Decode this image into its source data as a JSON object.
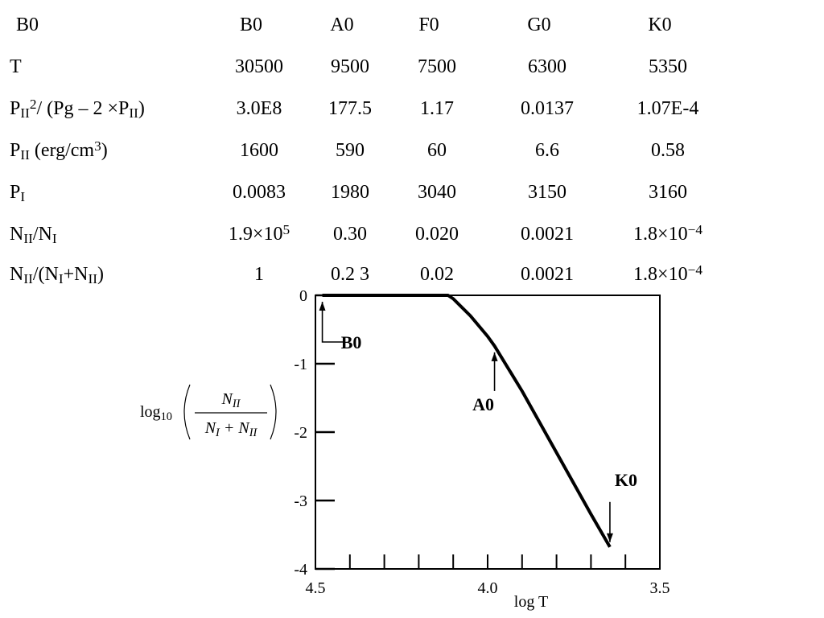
{
  "table": {
    "header": [
      "B0",
      "B0",
      "A0",
      "F0",
      "G0",
      "K0"
    ],
    "rows": [
      {
        "label": [
          {
            "text": "T"
          }
        ],
        "cells": [
          "30500",
          "9500",
          "7500",
          "6300",
          "5350"
        ]
      },
      {
        "label": [
          {
            "text": "P"
          },
          {
            "sub": "II"
          },
          {
            "sup": "2"
          },
          {
            "text": "/ (Pg – 2 ×P"
          },
          {
            "sub": "II"
          },
          {
            "text": ")"
          }
        ],
        "cells": [
          "3.0E8",
          "177.5",
          "1.17",
          "0.0137",
          "1.07E-4"
        ]
      },
      {
        "label": [
          {
            "text": "P"
          },
          {
            "sub": "II"
          },
          {
            "text": " (erg/cm"
          },
          {
            "sup": "3"
          },
          {
            "text": ")"
          }
        ],
        "cells": [
          "1600",
          "590",
          "60",
          "6.6",
          "0.58"
        ]
      },
      {
        "label": [
          {
            "text": "P"
          },
          {
            "sub": "I"
          }
        ],
        "cells": [
          "0.0083",
          "1980",
          "3040",
          "3150",
          "3160"
        ]
      },
      {
        "label": [
          {
            "text": "N"
          },
          {
            "sub": "II"
          },
          {
            "text": "/N"
          },
          {
            "sub": "I"
          }
        ],
        "cells": [
          [
            {
              "text": "1.9×10"
            },
            {
              "sup": "5"
            }
          ],
          "0.30",
          "0.020",
          "0.0021",
          [
            {
              "text": "1.8×10"
            },
            {
              "sup": "−4"
            }
          ]
        ]
      },
      {
        "label": [
          {
            "text": "N"
          },
          {
            "sub": "II"
          },
          {
            "text": "/(N"
          },
          {
            "sub": "I"
          },
          {
            "text": "+N"
          },
          {
            "sub": "II"
          },
          {
            "text": ")"
          }
        ],
        "cells": [
          "1",
          "0.2 3",
          "0.02",
          "0.0021",
          [
            {
              "text": "1.8×10"
            },
            {
              "sup": "−4"
            }
          ]
        ]
      }
    ]
  },
  "chart_data": {
    "type": "line",
    "x": [
      4.48,
      4.2,
      4.115,
      4.1,
      4.05,
      4.0,
      3.98,
      3.9,
      3.8,
      3.7,
      3.645
    ],
    "values": [
      0,
      0,
      0,
      -0.05,
      -0.3,
      -0.6,
      -0.74,
      -1.4,
      -2.3,
      -3.2,
      -3.68
    ],
    "color": "#000000",
    "xlim": [
      4.5,
      3.5
    ],
    "xticks": [
      {
        "value": 4.5,
        "label": "4.5"
      },
      {
        "value": 4,
        "label": "4.0"
      },
      {
        "value": 3.5,
        "label": "3.5"
      }
    ],
    "xminorticks": [
      4.4,
      4.3,
      4.2,
      4.1,
      4.0,
      3.9,
      3.8,
      3.7,
      3.6
    ],
    "ylim": [
      -4,
      0
    ],
    "yticks": [
      0,
      -1,
      -2,
      -3,
      -4
    ],
    "xlabel": "log T",
    "ylabel": {
      "prefix": [
        {
          "text": "log"
        },
        {
          "sub": "10"
        }
      ],
      "numerator": [
        {
          "text": "N"
        },
        {
          "sub": "II"
        }
      ],
      "denominator": [
        {
          "text": "N"
        },
        {
          "sub": "I"
        },
        {
          "text": " + N"
        },
        {
          "sub": "II"
        }
      ]
    },
    "annotations": [
      {
        "text": "B0",
        "x": 4.48,
        "y": 0
      },
      {
        "text": "A0",
        "x": 3.98,
        "y": -0.74
      },
      {
        "text": "K0",
        "x": 3.645,
        "y": -3.68
      }
    ]
  }
}
